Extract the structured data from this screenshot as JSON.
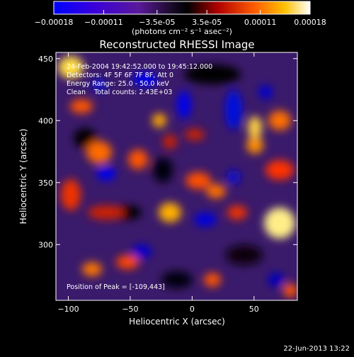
{
  "colorbar": {
    "ticks": [
      "-0.00018",
      "-0.00011",
      "-3.5e-05",
      "3.5e-05",
      "0.00011",
      "0.00018"
    ],
    "tick_values": [
      -0.00018,
      -0.00011,
      -3.5e-05,
      3.5e-05,
      0.00011,
      0.00018
    ],
    "range": [
      -0.00018,
      0.00018
    ],
    "units": "(photons cm⁻² s⁻¹ asec⁻²)",
    "colors": [
      "#0000ff",
      "#5500aa",
      "#000000",
      "#cc0000",
      "#ff6600",
      "#ffcc00",
      "#ffffff"
    ]
  },
  "chart_data": {
    "type": "heatmap",
    "title": "Reconstructed RHESSI Image",
    "xlabel": "Heliocentric X (arcsec)",
    "ylabel": "Heliocentric Y (arcsec)",
    "xlim": [
      -110,
      85
    ],
    "ylim": [
      255,
      455
    ],
    "xticks": [
      -100,
      -50,
      0,
      50
    ],
    "yticks": [
      300,
      350,
      400,
      450
    ],
    "annotations": [
      "24-Feb-2004 19:42:52.000 to 19:45:12.000",
      "Detectors: 4F 5F 6F 7F 8F, Att 0",
      "Energy Range: 25.0 - 50.0 keV",
      "Clean    Total counts: 2.43E+03"
    ],
    "peak_label": "Position of Peak = [-109,443]",
    "peak": [
      -109,
      443
    ]
  },
  "footer": {
    "date": "22-Jun-2013 13:22"
  }
}
